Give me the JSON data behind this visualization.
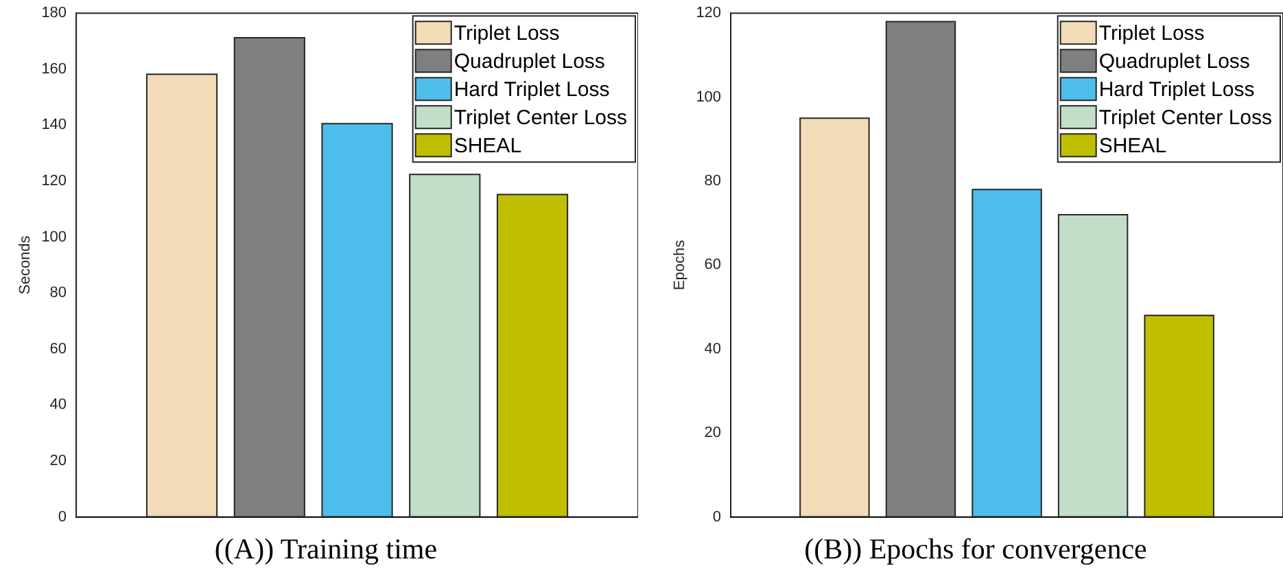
{
  "chart_data": [
    {
      "type": "bar",
      "title": "((A)) Training time",
      "ylabel": "Seconds",
      "categories": [
        null
      ],
      "series": [
        {
          "name": "Triplet Loss",
          "color": "#f2dcb8",
          "values": [
            158.2
          ]
        },
        {
          "name": "Quadruplet Loss",
          "color": "#7f7f7f",
          "values": [
            171.2
          ]
        },
        {
          "name": "Hard Triplet Loss",
          "color": "#4dbeeb",
          "values": [
            140.5
          ]
        },
        {
          "name": "Triplet Center Loss",
          "color": "#c3dec8",
          "values": [
            122.4
          ]
        },
        {
          "name": "SHEAL",
          "color": "#bfbf00",
          "values": [
            115.2
          ]
        }
      ],
      "ylim": [
        0,
        180
      ],
      "yticks": [
        0,
        20,
        40,
        60,
        80,
        100,
        120,
        140,
        160,
        180
      ],
      "grid": false,
      "legend": "top right",
      "tick_labels": "y"
    },
    {
      "type": "bar",
      "title": "((B)) Epochs for convergence",
      "ylabel": "Epochs",
      "categories": [
        null
      ],
      "series": [
        {
          "name": "Triplet Loss",
          "color": "#f2dcb8",
          "values": [
            95
          ]
        },
        {
          "name": "Quadruplet Loss",
          "color": "#7f7f7f",
          "values": [
            118
          ]
        },
        {
          "name": "Hard Triplet Loss",
          "color": "#4dbeeb",
          "values": [
            78
          ]
        },
        {
          "name": "Triplet Center Loss",
          "color": "#c3dec8",
          "values": [
            72
          ]
        },
        {
          "name": "SHEAL",
          "color": "#bfbf00",
          "values": [
            48
          ]
        }
      ],
      "ylim": [
        0,
        120
      ],
      "yticks": [
        0,
        20,
        40,
        60,
        80,
        100,
        120
      ],
      "grid": false,
      "legend": "top right",
      "tick_labels": "y"
    }
  ]
}
